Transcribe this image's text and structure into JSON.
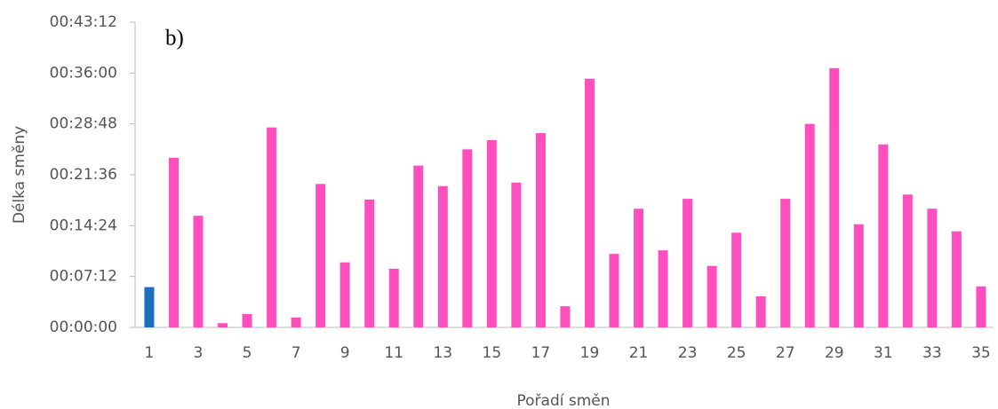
{
  "chart_data": {
    "type": "bar",
    "annotation": "b)",
    "x_label": "Pořadí směn",
    "y_label": "Délka směny",
    "categories": [
      1,
      null,
      3,
      null,
      5,
      null,
      7,
      null,
      9,
      null,
      11,
      null,
      13,
      null,
      15,
      null,
      17,
      null,
      19,
      null,
      21,
      null,
      23,
      null,
      25,
      null,
      27,
      null,
      29,
      null,
      31,
      null,
      33,
      null,
      35
    ],
    "values": [
      5.7,
      24.0,
      15.8,
      0.6,
      1.9,
      28.3,
      1.4,
      20.3,
      9.2,
      18.1,
      8.3,
      22.9,
      20.0,
      25.2,
      26.5,
      20.5,
      27.5,
      3.0,
      35.2,
      10.4,
      16.8,
      10.9,
      18.2,
      8.7,
      13.4,
      4.4,
      18.2,
      28.8,
      36.7,
      14.6,
      25.9,
      18.8,
      16.8,
      13.6,
      5.8
    ],
    "colors": [
      "#1a6fbf",
      "#ff4fbf",
      "#ff4fbf",
      "#ff4fbf",
      "#ff4fbf",
      "#ff4fbf",
      "#ff4fbf",
      "#ff4fbf",
      "#ff4fbf",
      "#ff4fbf",
      "#ff4fbf",
      "#ff4fbf",
      "#ff4fbf",
      "#ff4fbf",
      "#ff4fbf",
      "#ff4fbf",
      "#ff4fbf",
      "#ff4fbf",
      "#ff4fbf",
      "#ff4fbf",
      "#ff4fbf",
      "#ff4fbf",
      "#ff4fbf",
      "#ff4fbf",
      "#ff4fbf",
      "#ff4fbf",
      "#ff4fbf",
      "#ff4fbf",
      "#ff4fbf",
      "#ff4fbf",
      "#ff4fbf",
      "#ff4fbf",
      "#ff4fbf",
      "#ff4fbf",
      "#ff4fbf"
    ],
    "ylim": [
      0,
      43.2
    ],
    "yticks": [
      {
        "value": 0,
        "label": "00:00:00"
      },
      {
        "value": 7.2,
        "label": "00:07:12"
      },
      {
        "value": 14.4,
        "label": "00:14:24"
      },
      {
        "value": 21.6,
        "label": "00:21:36"
      },
      {
        "value": 28.8,
        "label": "00:28:48"
      },
      {
        "value": 36,
        "label": "00:36:00"
      },
      {
        "value": 43.2,
        "label": "00:43:12"
      }
    ],
    "grid": false
  }
}
